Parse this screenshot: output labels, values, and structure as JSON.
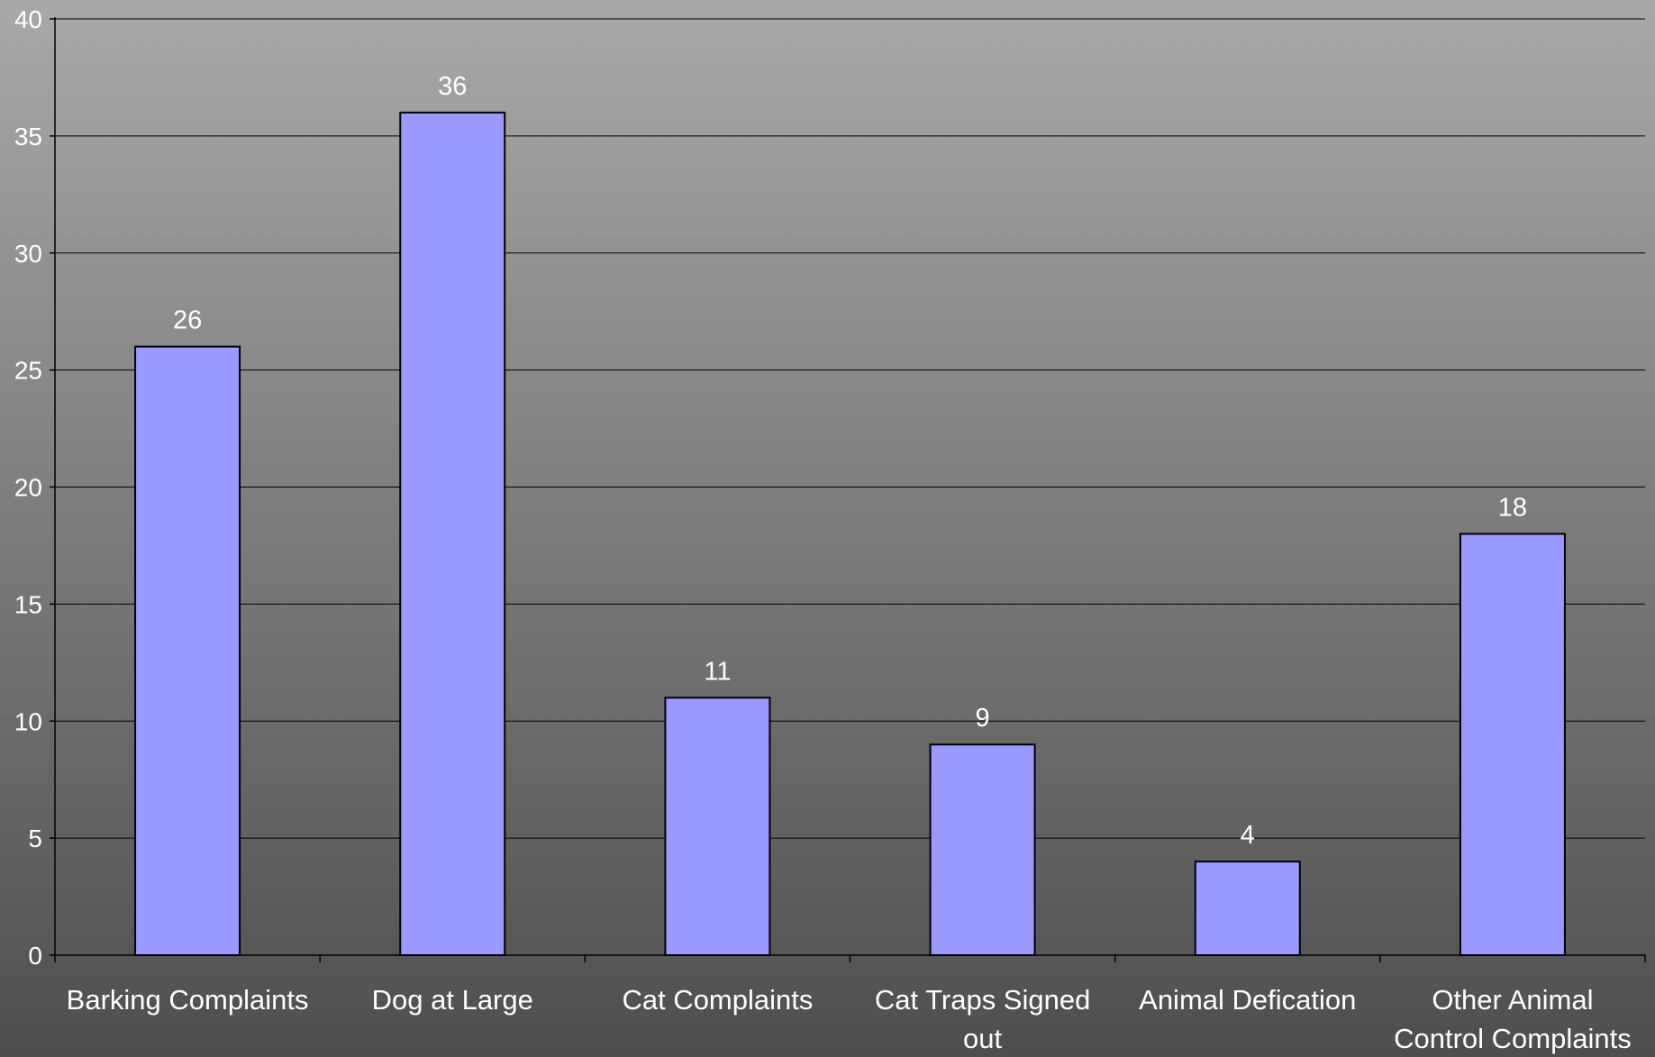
{
  "chart_data": {
    "type": "bar",
    "title": "",
    "xlabel": "",
    "ylabel": "",
    "categories": [
      "Barking Complaints",
      "Dog at Large",
      "Cat Complaints",
      "Cat Traps Signed out",
      "Animal Defication",
      "Other Animal Control Complaints"
    ],
    "values": [
      26,
      36,
      11,
      9,
      4,
      18
    ],
    "ylim": [
      0,
      40
    ],
    "yticks": [
      0,
      5,
      10,
      15,
      20,
      25,
      30,
      35,
      40
    ],
    "grid": true,
    "legend": "none",
    "colors": {
      "bar_fill": "#9999ff",
      "bar_stroke": "#000000",
      "background_top": "#a9a9a9",
      "background_bottom": "#4e4e4e",
      "text": "#ffffff",
      "grid": "#000000"
    }
  }
}
